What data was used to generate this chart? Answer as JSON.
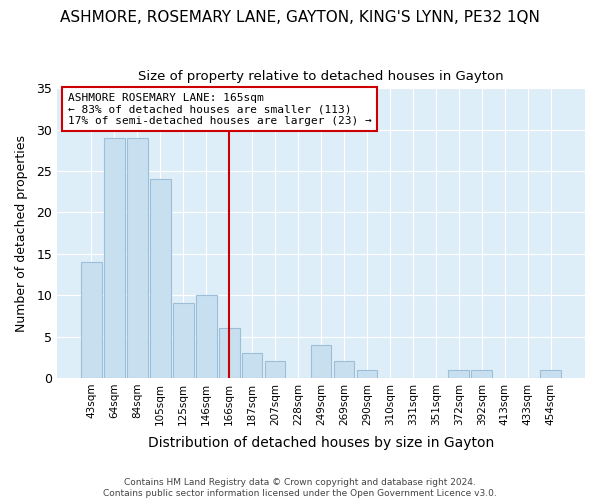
{
  "title": "ASHMORE, ROSEMARY LANE, GAYTON, KING'S LYNN, PE32 1QN",
  "subtitle": "Size of property relative to detached houses in Gayton",
  "xlabel": "Distribution of detached houses by size in Gayton",
  "ylabel": "Number of detached properties",
  "bar_color": "#c8dff0",
  "bar_edge_color": "#9bbfd8",
  "categories": [
    "43sqm",
    "64sqm",
    "84sqm",
    "105sqm",
    "125sqm",
    "146sqm",
    "166sqm",
    "187sqm",
    "207sqm",
    "228sqm",
    "249sqm",
    "269sqm",
    "290sqm",
    "310sqm",
    "331sqm",
    "351sqm",
    "372sqm",
    "392sqm",
    "413sqm",
    "433sqm",
    "454sqm"
  ],
  "values": [
    14,
    29,
    29,
    24,
    9,
    10,
    6,
    3,
    2,
    0,
    4,
    2,
    1,
    0,
    0,
    0,
    1,
    1,
    0,
    0,
    1
  ],
  "vline_x": 6,
  "vline_color": "#cc0000",
  "annotation_text": "ASHMORE ROSEMARY LANE: 165sqm\n← 83% of detached houses are smaller (113)\n17% of semi-detached houses are larger (23) →",
  "annotation_box_color": "white",
  "annotation_box_edge": "#cc0000",
  "ylim": [
    0,
    35
  ],
  "yticks": [
    0,
    5,
    10,
    15,
    20,
    25,
    30,
    35
  ],
  "footer1": "Contains HM Land Registry data © Crown copyright and database right 2024.",
  "footer2": "Contains public sector information licensed under the Open Government Licence v3.0.",
  "fig_background_color": "#ffffff",
  "plot_bg_color": "#deeef8"
}
